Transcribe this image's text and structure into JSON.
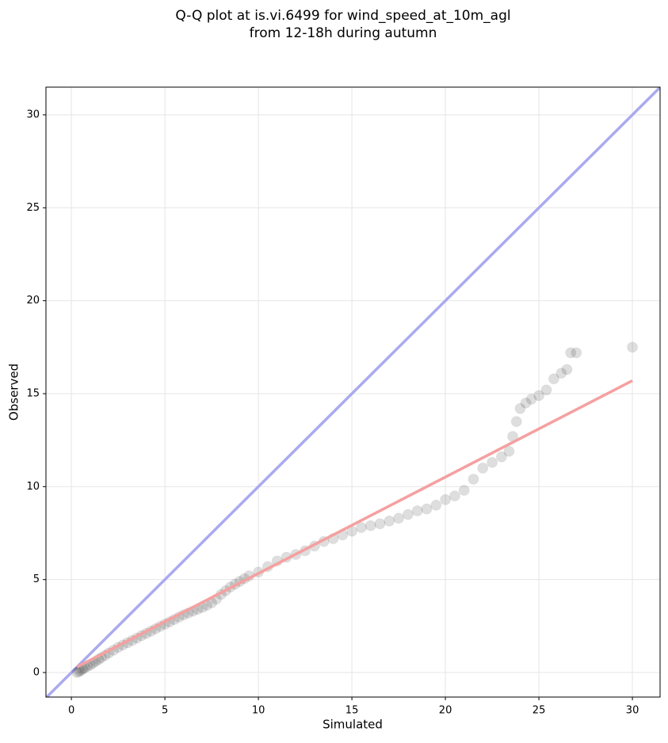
{
  "chart_data": {
    "type": "scatter",
    "title": [
      "Q-Q plot at is.vi.6499 for wind_speed_at_10m_agl",
      "from 12-18h during autumn"
    ],
    "x_label": "Simulated",
    "y_label": "Observed",
    "xlim": [
      -1.36,
      31.48
    ],
    "ylim": [
      -1.32,
      31.49
    ],
    "xticks": [
      0,
      5,
      10,
      15,
      20,
      25,
      30
    ],
    "yticks": [
      0,
      5,
      10,
      15,
      20,
      25,
      30
    ],
    "grid": true,
    "series": [
      {
        "mode": "line",
        "color": "#aaaaf0",
        "x": [
          -1.36,
          31.48
        ],
        "values": [
          -1.36,
          31.48
        ]
      },
      {
        "mode": "points",
        "color": "#000000",
        "x": [
          0.3,
          0.4,
          0.5,
          0.6,
          0.7,
          0.85,
          1.0,
          1.15,
          1.3,
          1.45,
          1.6,
          1.8,
          2.0,
          2.25,
          2.5,
          2.75,
          3.0,
          3.25,
          3.5,
          3.75,
          4.0,
          4.25,
          4.5,
          4.75,
          5.0,
          5.25,
          5.5,
          5.75,
          6.0,
          6.25,
          6.5,
          6.75,
          7.0,
          7.25,
          7.5,
          7.75,
          8.0,
          8.25,
          8.5,
          8.75,
          9.0,
          9.25,
          9.5,
          10.0,
          10.5,
          11.0,
          11.5,
          12.0,
          12.5,
          13.0,
          13.5,
          14.0,
          14.5,
          15.0,
          15.5,
          16.0,
          16.5,
          17.0,
          17.5,
          18.0,
          18.5,
          19.0,
          19.5,
          20.0,
          20.5,
          21.0,
          21.5,
          22.0,
          22.5,
          23.0,
          23.4,
          23.6,
          23.8,
          24.0,
          24.3,
          24.6,
          25.0,
          25.4,
          25.8,
          26.2,
          26.5,
          26.7,
          27.0,
          30.0
        ],
        "values": [
          0.0,
          0.05,
          0.1,
          0.18,
          0.25,
          0.33,
          0.4,
          0.5,
          0.6,
          0.7,
          0.8,
          0.92,
          1.05,
          1.2,
          1.35,
          1.48,
          1.6,
          1.72,
          1.85,
          1.98,
          2.1,
          2.22,
          2.35,
          2.48,
          2.6,
          2.72,
          2.85,
          2.98,
          3.1,
          3.2,
          3.3,
          3.4,
          3.5,
          3.62,
          3.75,
          3.95,
          4.2,
          4.4,
          4.6,
          4.75,
          4.9,
          5.05,
          5.2,
          5.4,
          5.7,
          6.0,
          6.2,
          6.35,
          6.55,
          6.8,
          7.05,
          7.2,
          7.4,
          7.6,
          7.8,
          7.9,
          8.0,
          8.15,
          8.3,
          8.5,
          8.7,
          8.8,
          9.0,
          9.3,
          9.5,
          9.8,
          10.4,
          11.0,
          11.3,
          11.6,
          11.9,
          12.7,
          13.5,
          14.2,
          14.5,
          14.7,
          14.9,
          15.2,
          15.8,
          16.1,
          16.3,
          17.2,
          17.2,
          17.5
        ]
      },
      {
        "mode": "line",
        "color": "#f5a0a0",
        "x": [
          0.3,
          30.0
        ],
        "values": [
          0.3,
          15.7
        ]
      }
    ]
  }
}
